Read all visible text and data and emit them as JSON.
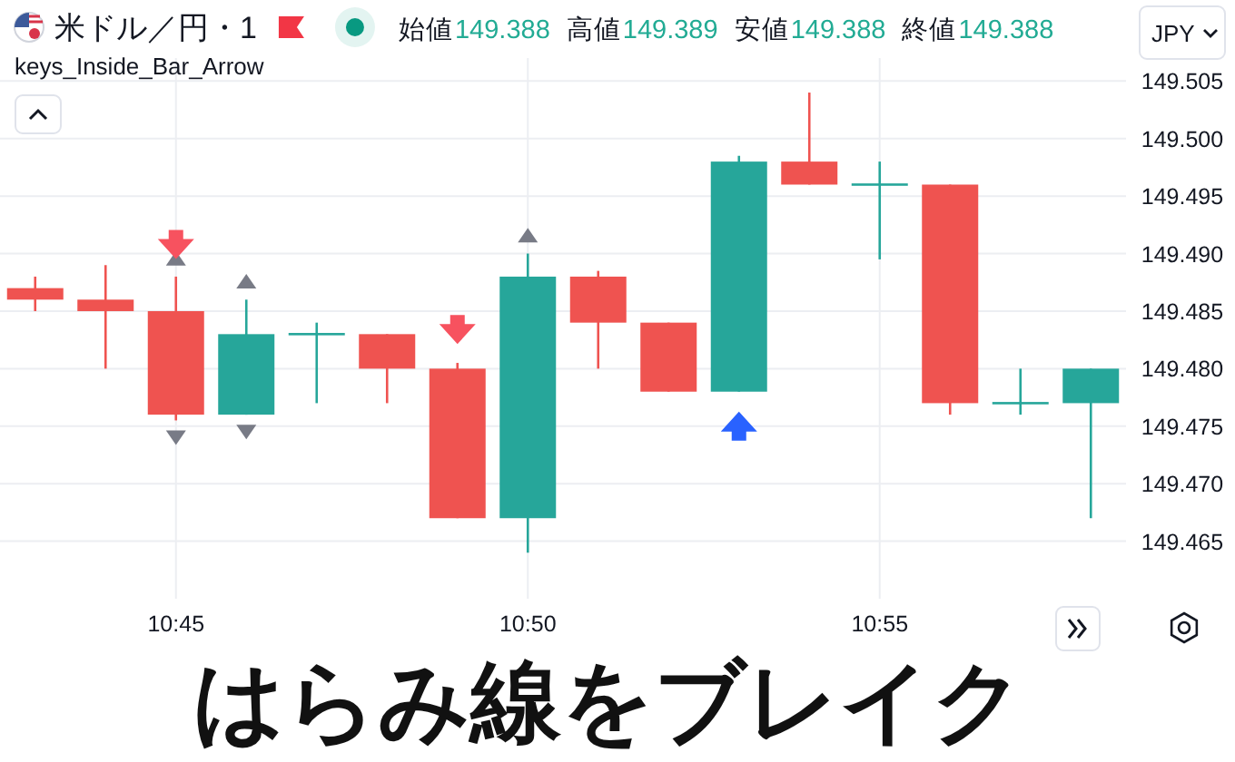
{
  "chart_data": {
    "type": "candlestick",
    "title": "米ドル／円・1",
    "subtitle": "keys_Inside_Bar_Arrow",
    "annotations": [
      "はらみ線をブレイク",
      "始値",
      "149.388",
      "高値",
      "149.389",
      "安値",
      "149.388",
      "終値",
      "149.388",
      "JPY"
    ],
    "categories": [
      null,
      null,
      "10:45",
      null,
      null,
      null,
      null,
      "10:50",
      null,
      null,
      null,
      null,
      "10:55",
      null,
      null,
      null
    ],
    "ohlc": [
      [
        149.487,
        149.488,
        149.485,
        149.486
      ],
      [
        149.486,
        149.489,
        149.48,
        149.485
      ],
      [
        149.485,
        149.488,
        149.4755,
        149.476
      ],
      [
        149.476,
        149.486,
        149.476,
        149.483
      ],
      [
        149.483,
        149.484,
        149.477,
        149.483
      ],
      [
        149.483,
        149.483,
        149.477,
        149.48
      ],
      [
        149.48,
        149.4805,
        149.467,
        149.467
      ],
      [
        149.467,
        149.49,
        149.464,
        149.488
      ],
      [
        149.488,
        149.4885,
        149.48,
        149.484
      ],
      [
        149.484,
        149.484,
        149.478,
        149.478
      ],
      [
        149.478,
        149.4985,
        149.478,
        149.498
      ],
      [
        149.498,
        149.504,
        149.496,
        149.496
      ],
      [
        149.496,
        149.498,
        149.4895,
        149.496
      ],
      [
        149.496,
        149.496,
        149.476,
        149.477
      ],
      [
        149.477,
        149.48,
        149.476,
        149.477
      ],
      [
        149.477,
        149.48,
        149.467,
        149.48
      ]
    ],
    "colors": [
      "#ef5350",
      "#ef5350",
      "#ef5350",
      "#26a69a",
      "#26a69a",
      "#ef5350",
      "#ef5350",
      "#26a69a",
      "#ef5350",
      "#ef5350",
      "#26a69a",
      "#ef5350",
      "#26a69a",
      "#ef5350",
      "#26a69a",
      "#26a69a"
    ],
    "series": [
      {
        "type": "scatter",
        "marker": "triangle",
        "color": "#787b86",
        "values": [
          null,
          null,
          149.4896,
          149.4876,
          null,
          null,
          null,
          149.4916,
          null,
          null,
          null,
          null,
          null,
          null,
          null,
          null
        ]
      },
      {
        "type": "scatter",
        "marker": "triangle",
        "color": "#787b86",
        "values": [
          null,
          null,
          149.474,
          149.4745,
          null,
          null,
          null,
          null,
          null,
          null,
          null,
          null,
          null,
          null,
          null,
          null
        ]
      },
      {
        "type": "scatter",
        "color": "#f7525f",
        "values": [
          null,
          null,
          149.4908,
          null,
          null,
          null,
          149.4834,
          null,
          null,
          null,
          null,
          null,
          null,
          null,
          null,
          null
        ]
      },
      {
        "type": "scatter",
        "color": "#2962ff",
        "values": [
          null,
          null,
          null,
          null,
          null,
          null,
          null,
          null,
          null,
          null,
          149.475,
          null,
          null,
          null,
          null,
          null
        ]
      }
    ],
    "ylim": [
      149.46,
      149.507
    ],
    "yticks": [
      149.465,
      {
        "value": 149.47,
        "label": "149.470"
      },
      149.475,
      {
        "value": 149.48,
        "label": "149.480"
      },
      149.485,
      {
        "value": 149.49,
        "label": "149.490"
      },
      149.495,
      {
        "value": 149.5,
        "label": "149.500"
      },
      149.505
    ],
    "grid": true
  }
}
